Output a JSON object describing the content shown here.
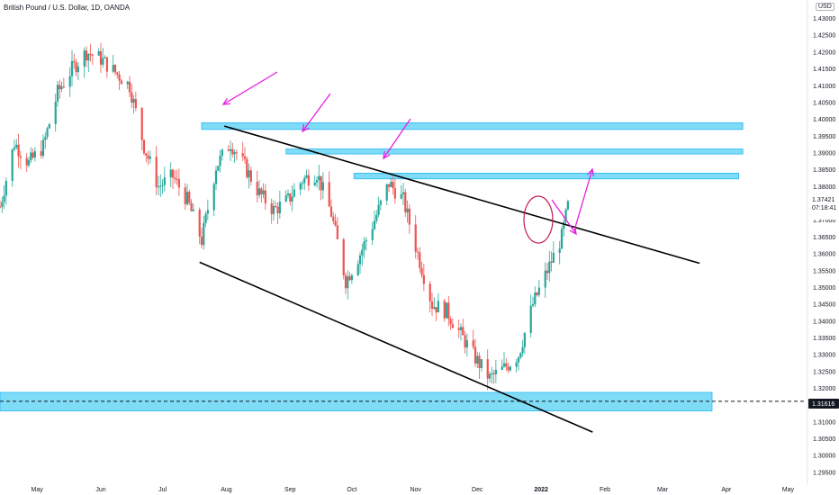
{
  "header": {
    "title": "British Pound / U.S. Dollar, 1D, OANDA",
    "currency": "USD"
  },
  "price_tags": {
    "last_price": "1.37421",
    "countdown": "07:18:41",
    "support_price": "1.31616"
  },
  "colors": {
    "up": "#26a69a",
    "down": "#ef5350",
    "zone_fill": "#7fdcf7",
    "zone_stroke": "#29b6f6",
    "arrow": "#e81fe0",
    "circle": "#c2185b",
    "trendline": "#000000"
  },
  "chart_data": {
    "type": "candlestick",
    "title": "British Pound / U.S. Dollar, 1D, OANDA",
    "ylim": [
      1.2915,
      1.4355
    ],
    "y_ticks": [
      "1.29500",
      "1.30000",
      "1.30500",
      "1.31000",
      "1.31500",
      "1.32000",
      "1.32500",
      "1.33000",
      "1.33500",
      "1.34000",
      "1.34500",
      "1.35000",
      "1.35500",
      "1.36000",
      "1.36500",
      "1.37000",
      "1.37500",
      "1.38000",
      "1.38500",
      "1.39000",
      "1.39500",
      "1.40000",
      "1.40500",
      "1.41000",
      "1.41500",
      "1.42000",
      "1.42500",
      "1.43000"
    ],
    "x_ticks": [
      "May",
      "Jun",
      "Jul",
      "Aug",
      "Sep",
      "Oct",
      "Nov",
      "Dec",
      "2022",
      "Feb",
      "Mar",
      "Apr",
      "May"
    ],
    "x_range": [
      "2021-04-13",
      "2022-05-10"
    ],
    "grid": false,
    "path": [
      [
        "2021-04-13",
        1.374
      ],
      [
        "2021-04-20",
        1.393
      ],
      [
        "2021-04-27",
        1.387
      ],
      [
        "2021-05-04",
        1.392
      ],
      [
        "2021-05-11",
        1.408
      ],
      [
        "2021-05-18",
        1.415
      ],
      [
        "2021-05-25",
        1.42
      ],
      [
        "2021-06-01",
        1.418
      ],
      [
        "2021-06-08",
        1.414
      ],
      [
        "2021-06-15",
        1.41
      ],
      [
        "2021-06-22",
        1.392
      ],
      [
        "2021-06-29",
        1.38
      ],
      [
        "2021-07-06",
        1.383
      ],
      [
        "2021-07-13",
        1.376
      ],
      [
        "2021-07-20",
        1.364
      ],
      [
        "2021-07-27",
        1.386
      ],
      [
        "2021-08-03",
        1.393
      ],
      [
        "2021-08-10",
        1.386
      ],
      [
        "2021-08-17",
        1.378
      ],
      [
        "2021-08-24",
        1.373
      ],
      [
        "2021-08-31",
        1.376
      ],
      [
        "2021-09-07",
        1.382
      ],
      [
        "2021-09-14",
        1.384
      ],
      [
        "2021-09-21",
        1.372
      ],
      [
        "2021-09-28",
        1.352
      ],
      [
        "2021-10-05",
        1.36
      ],
      [
        "2021-10-12",
        1.37
      ],
      [
        "2021-10-19",
        1.381
      ],
      [
        "2021-10-26",
        1.376
      ],
      [
        "2021-11-02",
        1.36
      ],
      [
        "2021-11-09",
        1.345
      ],
      [
        "2021-11-16",
        1.343
      ],
      [
        "2021-11-23",
        1.336
      ],
      [
        "2021-11-30",
        1.329
      ],
      [
        "2021-12-07",
        1.323
      ],
      [
        "2021-12-14",
        1.326
      ],
      [
        "2021-12-21",
        1.33
      ],
      [
        "2021-12-28",
        1.345
      ],
      [
        "2022-01-04",
        1.355
      ],
      [
        "2022-01-11",
        1.365
      ],
      [
        "2022-01-14",
        1.3742
      ]
    ],
    "last_value": 1.37421,
    "annotations": {
      "resistance_zones": [
        {
          "from": "2021-07-20",
          "to": "2022-04-09",
          "low": 1.397,
          "high": 1.399
        },
        {
          "from": "2021-08-30",
          "to": "2022-04-09",
          "low": 1.3897,
          "high": 1.3912
        },
        {
          "from": "2021-10-02",
          "to": "2022-04-07",
          "low": 1.3823,
          "high": 1.384
        }
      ],
      "support_zone": {
        "low": 1.3133,
        "high": 1.3188
      },
      "support_level": 1.31616,
      "upper_trendline": [
        [
          "2021-07-31",
          1.398
        ],
        [
          "2022-03-19",
          1.3572
        ]
      ],
      "lower_trendline": [
        [
          "2021-07-19",
          1.3575
        ],
        [
          "2022-01-26",
          1.307
        ]
      ]
    }
  }
}
